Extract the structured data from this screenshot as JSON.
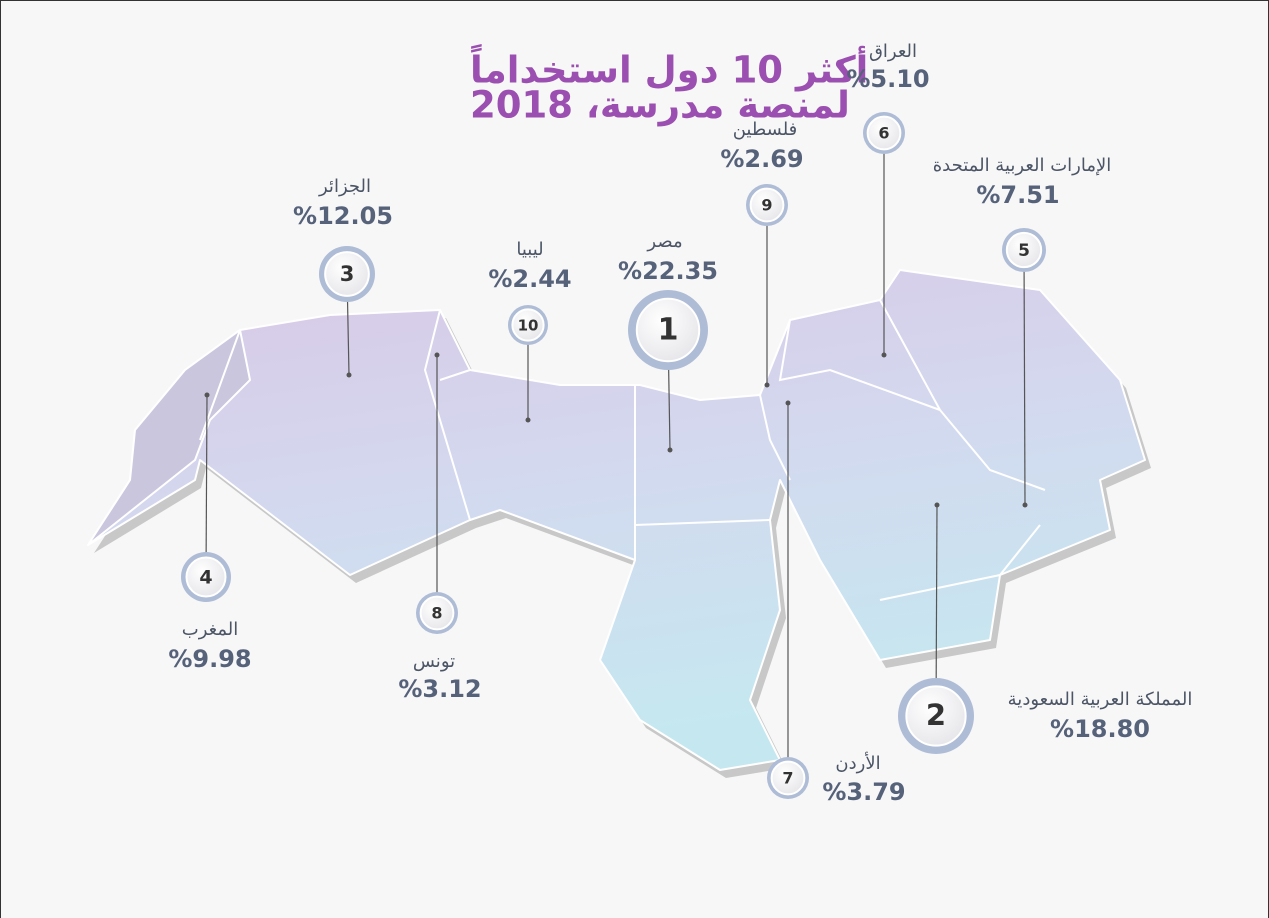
{
  "title": [
    "أكثر 10 دول استخداماً",
    "لمنصة مدرسة، 2018"
  ],
  "countries": [
    {
      "rank": 1,
      "name": "مصر",
      "value": "%22.35"
    },
    {
      "rank": 2,
      "name": "المملكة العربية السعودية",
      "value": "%18.80"
    },
    {
      "rank": 3,
      "name": "الجزائر",
      "value": "%12.05"
    },
    {
      "rank": 4,
      "name": "المغرب",
      "value": "%9.98"
    },
    {
      "rank": 5,
      "name": "الإمارات العربية المتحدة",
      "value": "%7.51"
    },
    {
      "rank": 6,
      "name": "العراق",
      "value": "%5.10"
    },
    {
      "rank": 7,
      "name": "الأردن",
      "value": "%3.79"
    },
    {
      "rank": 8,
      "name": "تونس",
      "value": "%3.12"
    },
    {
      "rank": 9,
      "name": "فلسطين",
      "value": "%2.69"
    },
    {
      "rank": 10,
      "name": "ليبيا",
      "value": "%2.44"
    }
  ]
}
